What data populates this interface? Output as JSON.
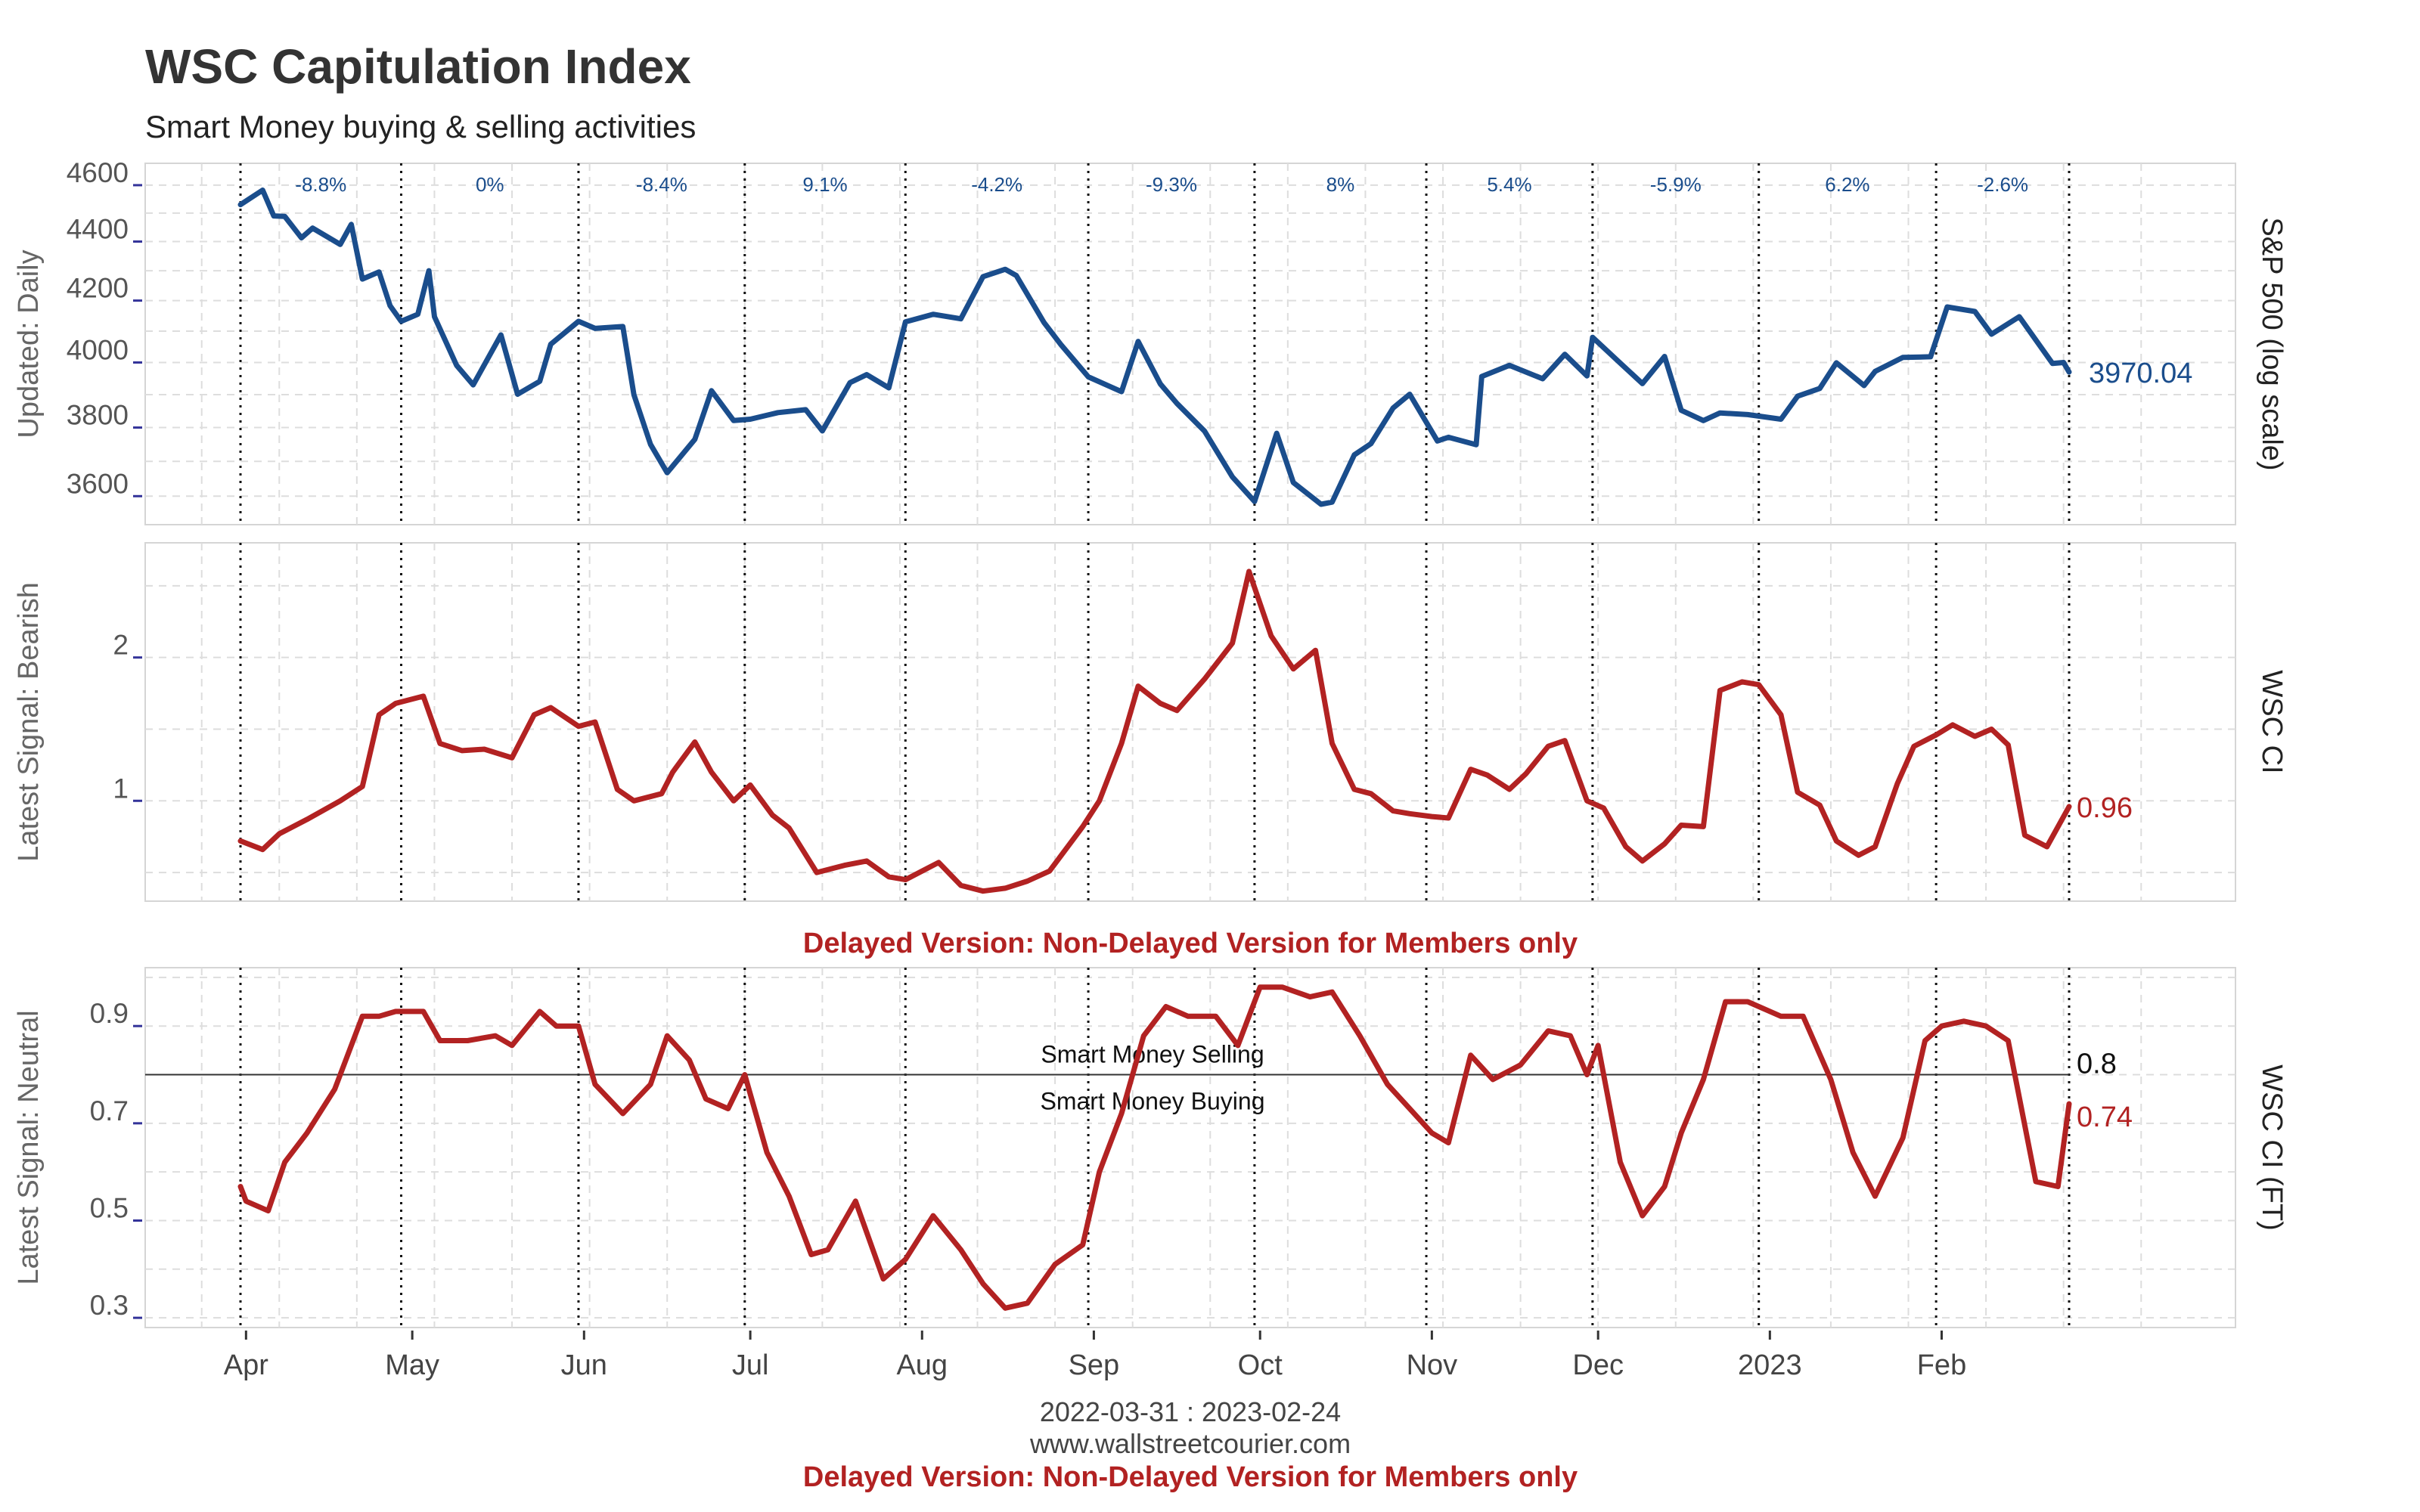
{
  "title": "WSC Capitulation Index",
  "subtitle": "Smart Money buying & selling activities",
  "delayed_notice": "Delayed Version: Non-Delayed Version for Members only",
  "footer": {
    "date_range": "2022-03-31 : 2023-02-24",
    "website": "www.wallstreetcourier.com",
    "notice": "Delayed Version: Non-Delayed Version for Members only"
  },
  "colors": {
    "sp500": "#1a4d8c",
    "ci": "#b22222",
    "grid": "#dddddd",
    "reference": "#333333"
  },
  "chart_data": [
    {
      "type": "line",
      "panel": "top",
      "ylabel_left": "Updated: Daily",
      "ylabel_right": "S&P 500 (log scale)",
      "ylim": [
        3520,
        4680
      ],
      "yscale": "log",
      "yticks": [
        3600,
        3800,
        4000,
        4200,
        4400,
        4600
      ],
      "x_months": [
        "Apr",
        "May",
        "Jun",
        "Jul",
        "Aug",
        "Sep",
        "Oct",
        "Nov",
        "Dec",
        "2023",
        "Feb"
      ],
      "month_changes": [
        "-8.8%",
        "0%",
        "-8.4%",
        "9.1%",
        "-4.2%",
        "-9.3%",
        "8%",
        "5.4%",
        "-5.9%",
        "6.2%",
        "-2.6%"
      ],
      "last_value_label": "3970.04",
      "series": [
        {
          "x": [
            "2022-03-31",
            "2022-04-04",
            "2022-04-06",
            "2022-04-08",
            "2022-04-11",
            "2022-04-13",
            "2022-04-18",
            "2022-04-20",
            "2022-04-22",
            "2022-04-25",
            "2022-04-27",
            "2022-04-29",
            "2022-05-02",
            "2022-05-04",
            "2022-05-05",
            "2022-05-09",
            "2022-05-12",
            "2022-05-17",
            "2022-05-20",
            "2022-05-24",
            "2022-05-26",
            "2022-05-31",
            "2022-06-03",
            "2022-06-08",
            "2022-06-10",
            "2022-06-13",
            "2022-06-16",
            "2022-06-21",
            "2022-06-24",
            "2022-06-28",
            "2022-07-01",
            "2022-07-06",
            "2022-07-11",
            "2022-07-14",
            "2022-07-19",
            "2022-07-22",
            "2022-07-26",
            "2022-07-29",
            "2022-08-03",
            "2022-08-08",
            "2022-08-12",
            "2022-08-16",
            "2022-08-18",
            "2022-08-23",
            "2022-08-26",
            "2022-08-31",
            "2022-09-06",
            "2022-09-09",
            "2022-09-13",
            "2022-09-16",
            "2022-09-21",
            "2022-09-26",
            "2022-09-30",
            "2022-10-04",
            "2022-10-07",
            "2022-10-12",
            "2022-10-14",
            "2022-10-18",
            "2022-10-21",
            "2022-10-25",
            "2022-10-28",
            "2022-11-02",
            "2022-11-04",
            "2022-11-09",
            "2022-11-10",
            "2022-11-15",
            "2022-11-21",
            "2022-11-25",
            "2022-11-29",
            "2022-11-30",
            "2022-12-05",
            "2022-12-09",
            "2022-12-13",
            "2022-12-16",
            "2022-12-20",
            "2022-12-23",
            "2022-12-28",
            "2023-01-03",
            "2023-01-06",
            "2023-01-10",
            "2023-01-13",
            "2023-01-18",
            "2023-01-20",
            "2023-01-25",
            "2023-01-30",
            "2023-02-02",
            "2023-02-07",
            "2023-02-10",
            "2023-02-15",
            "2023-02-21",
            "2023-02-23",
            "2023-02-24"
          ],
          "values": [
            4530,
            4582,
            4490,
            4488,
            4413,
            4447,
            4390,
            4460,
            4272,
            4296,
            4183,
            4132,
            4155,
            4300,
            4147,
            3991,
            3930,
            4088,
            3901,
            3941,
            4058,
            4132,
            4109,
            4115,
            3900,
            3750,
            3667,
            3765,
            3912,
            3821,
            3825,
            3845,
            3854,
            3790,
            3937,
            3962,
            3921,
            4130,
            4155,
            4140,
            4280,
            4305,
            4284,
            4128,
            4058,
            3955,
            3909,
            4067,
            3933,
            3873,
            3789,
            3655,
            3585,
            3783,
            3639,
            3577,
            3583,
            3719,
            3752,
            3859,
            3901,
            3760,
            3771,
            3749,
            3956,
            3991,
            3949,
            4026,
            3958,
            4080,
            3998,
            3934,
            4019,
            3852,
            3821,
            3844,
            3839,
            3825,
            3895,
            3919,
            3999,
            3928,
            3972,
            4016,
            4018,
            4179,
            4164,
            4090,
            4147,
            3997,
            4000,
            3970.04
          ]
        }
      ]
    },
    {
      "type": "line",
      "panel": "middle",
      "ylabel_left": "Latest Signal: Bearish",
      "ylabel_right": "WSC CI",
      "ylim": [
        0.3,
        2.8
      ],
      "yticks": [
        1,
        2
      ],
      "last_value_label": "0.96",
      "series": [
        {
          "x": [
            "2022-03-31",
            "2022-04-04",
            "2022-04-07",
            "2022-04-12",
            "2022-04-18",
            "2022-04-22",
            "2022-04-25",
            "2022-04-28",
            "2022-05-03",
            "2022-05-06",
            "2022-05-10",
            "2022-05-14",
            "2022-05-19",
            "2022-05-23",
            "2022-05-26",
            "2022-05-31",
            "2022-06-03",
            "2022-06-07",
            "2022-06-10",
            "2022-06-15",
            "2022-06-17",
            "2022-06-21",
            "2022-06-24",
            "2022-06-28",
            "2022-07-01",
            "2022-07-05",
            "2022-07-08",
            "2022-07-13",
            "2022-07-18",
            "2022-07-22",
            "2022-07-26",
            "2022-07-29",
            "2022-08-04",
            "2022-08-08",
            "2022-08-12",
            "2022-08-16",
            "2022-08-20",
            "2022-08-24",
            "2022-08-30",
            "2022-09-02",
            "2022-09-06",
            "2022-09-09",
            "2022-09-13",
            "2022-09-16",
            "2022-09-21",
            "2022-09-26",
            "2022-09-29",
            "2022-10-03",
            "2022-10-07",
            "2022-10-11",
            "2022-10-14",
            "2022-10-18",
            "2022-10-21",
            "2022-10-25",
            "2022-10-28",
            "2022-11-01",
            "2022-11-04",
            "2022-11-08",
            "2022-11-11",
            "2022-11-15",
            "2022-11-18",
            "2022-11-22",
            "2022-11-25",
            "2022-11-29",
            "2022-12-02",
            "2022-12-06",
            "2022-12-09",
            "2022-12-13",
            "2022-12-16",
            "2022-12-20",
            "2022-12-23",
            "2022-12-27",
            "2022-12-30",
            "2023-01-03",
            "2023-01-06",
            "2023-01-10",
            "2023-01-13",
            "2023-01-17",
            "2023-01-20",
            "2023-01-24",
            "2023-01-27",
            "2023-01-31",
            "2023-02-03",
            "2023-02-07",
            "2023-02-10",
            "2023-02-13",
            "2023-02-16",
            "2023-02-20",
            "2023-02-24"
          ],
          "values": [
            0.72,
            0.66,
            0.77,
            0.87,
            1.0,
            1.1,
            1.6,
            1.68,
            1.73,
            1.4,
            1.35,
            1.36,
            1.3,
            1.6,
            1.65,
            1.52,
            1.55,
            1.08,
            1.0,
            1.05,
            1.2,
            1.41,
            1.2,
            1.0,
            1.11,
            0.9,
            0.81,
            0.5,
            0.55,
            0.58,
            0.47,
            0.45,
            0.57,
            0.41,
            0.37,
            0.39,
            0.44,
            0.51,
            0.82,
            1.0,
            1.4,
            1.8,
            1.68,
            1.63,
            1.85,
            2.1,
            2.6,
            2.15,
            1.92,
            2.05,
            1.4,
            1.08,
            1.05,
            0.93,
            0.91,
            0.89,
            0.88,
            1.22,
            1.18,
            1.08,
            1.19,
            1.38,
            1.42,
            1.0,
            0.95,
            0.68,
            0.58,
            0.7,
            0.83,
            0.82,
            1.77,
            1.83,
            1.81,
            1.6,
            1.06,
            0.97,
            0.72,
            0.62,
            0.68,
            1.12,
            1.38,
            1.46,
            1.53,
            1.45,
            1.5,
            1.39,
            0.76,
            0.68,
            0.96
          ]
        }
      ]
    },
    {
      "type": "line",
      "panel": "bottom",
      "ylabel_left": "Latest Signal: Neutral",
      "ylabel_right": "WSC CI (FT)",
      "ylim": [
        0.28,
        1.02
      ],
      "yticks": [
        0.3,
        0.5,
        0.7,
        0.9
      ],
      "reference_line": {
        "value": 0.8,
        "label": "0.8",
        "label_above": "Smart Money Selling",
        "label_below": "Smart Money Buying"
      },
      "last_value_label": "0.74",
      "series": [
        {
          "x": [
            "2022-03-31",
            "2022-04-01",
            "2022-04-05",
            "2022-04-08",
            "2022-04-12",
            "2022-04-17",
            "2022-04-22",
            "2022-04-25",
            "2022-04-28",
            "2022-05-03",
            "2022-05-06",
            "2022-05-11",
            "2022-05-16",
            "2022-05-19",
            "2022-05-24",
            "2022-05-27",
            "2022-05-31",
            "2022-06-03",
            "2022-06-08",
            "2022-06-13",
            "2022-06-16",
            "2022-06-20",
            "2022-06-23",
            "2022-06-27",
            "2022-06-30",
            "2022-07-04",
            "2022-07-08",
            "2022-07-12",
            "2022-07-15",
            "2022-07-20",
            "2022-07-25",
            "2022-07-29",
            "2022-08-03",
            "2022-08-08",
            "2022-08-12",
            "2022-08-16",
            "2022-08-20",
            "2022-08-25",
            "2022-08-30",
            "2022-09-02",
            "2022-09-06",
            "2022-09-10",
            "2022-09-14",
            "2022-09-18",
            "2022-09-23",
            "2022-09-27",
            "2022-10-01",
            "2022-10-05",
            "2022-10-10",
            "2022-10-14",
            "2022-10-19",
            "2022-10-24",
            "2022-10-28",
            "2022-11-01",
            "2022-11-04",
            "2022-11-08",
            "2022-11-12",
            "2022-11-17",
            "2022-11-22",
            "2022-11-26",
            "2022-11-29",
            "2022-12-01",
            "2022-12-05",
            "2022-12-09",
            "2022-12-13",
            "2022-12-16",
            "2022-12-20",
            "2022-12-24",
            "2022-12-28",
            "2023-01-03",
            "2023-01-07",
            "2023-01-12",
            "2023-01-16",
            "2023-01-20",
            "2023-01-25",
            "2023-01-29",
            "2023-02-01",
            "2023-02-05",
            "2023-02-09",
            "2023-02-13",
            "2023-02-18",
            "2023-02-22",
            "2023-02-24"
          ],
          "values": [
            0.57,
            0.54,
            0.52,
            0.62,
            0.68,
            0.77,
            0.92,
            0.92,
            0.93,
            0.93,
            0.87,
            0.87,
            0.88,
            0.86,
            0.93,
            0.9,
            0.9,
            0.78,
            0.72,
            0.78,
            0.88,
            0.83,
            0.75,
            0.73,
            0.8,
            0.64,
            0.55,
            0.43,
            0.44,
            0.54,
            0.38,
            0.42,
            0.51,
            0.44,
            0.37,
            0.32,
            0.33,
            0.41,
            0.45,
            0.6,
            0.72,
            0.88,
            0.94,
            0.92,
            0.92,
            0.86,
            0.98,
            0.98,
            0.96,
            0.97,
            0.88,
            0.78,
            0.73,
            0.68,
            0.66,
            0.84,
            0.79,
            0.82,
            0.89,
            0.88,
            0.8,
            0.86,
            0.62,
            0.51,
            0.57,
            0.68,
            0.79,
            0.95,
            0.95,
            0.92,
            0.92,
            0.79,
            0.64,
            0.55,
            0.67,
            0.87,
            0.9,
            0.91,
            0.9,
            0.87,
            0.58,
            0.57,
            0.74
          ]
        }
      ]
    }
  ]
}
